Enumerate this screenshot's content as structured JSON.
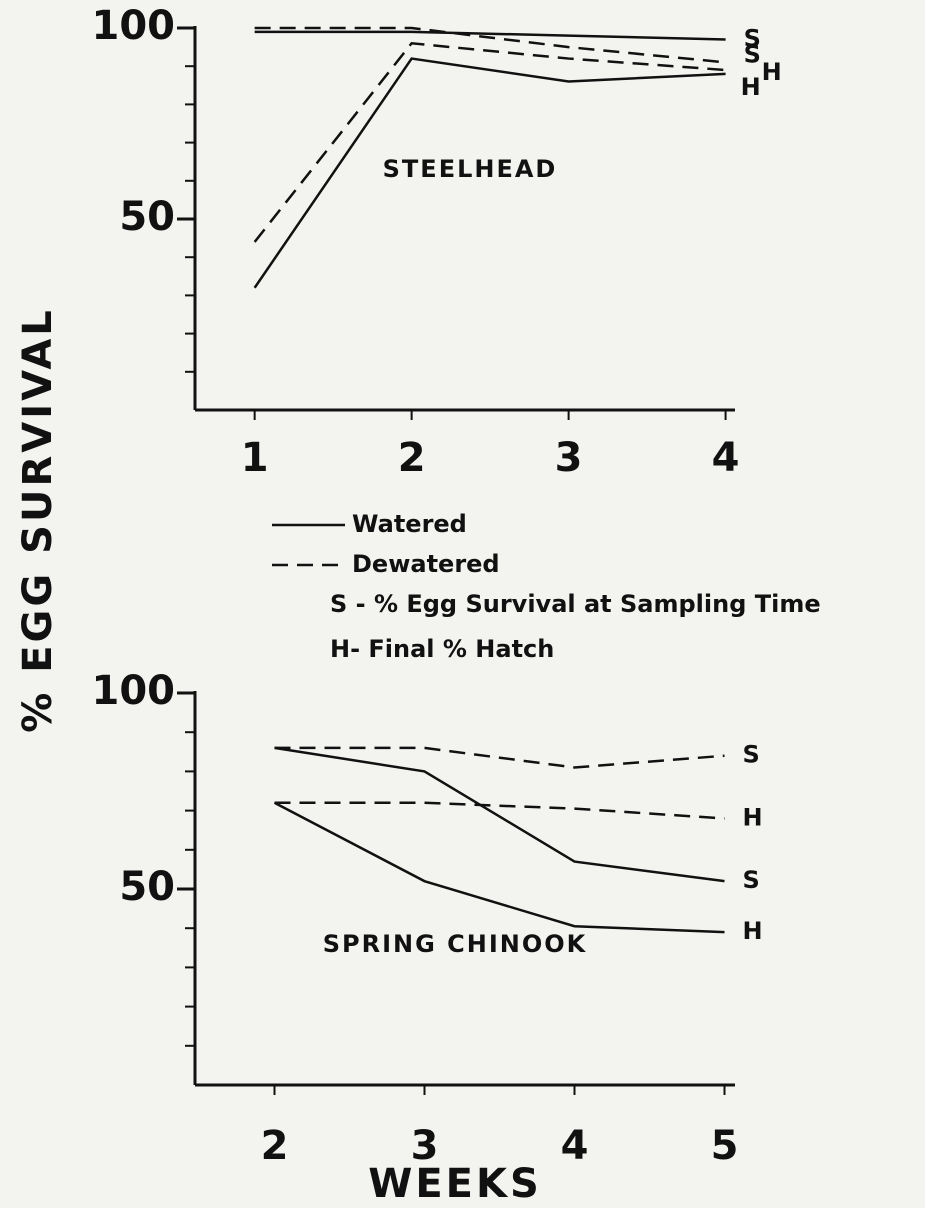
{
  "ylabel": "% EGG SURVIVAL",
  "xlabel": "WEEKS",
  "legend": [
    {
      "label": "Watered",
      "style": "solid"
    },
    {
      "label": "Dewatered",
      "style": "dashed"
    }
  ],
  "notes": [
    "S - % Egg Survival at Sampling Time",
    "H- Final % Hatch"
  ],
  "chart_data": [
    {
      "type": "line",
      "annotation": "STEELHEAD",
      "x": [
        1,
        2,
        3,
        4
      ],
      "xlim": [
        0.62,
        4.06
      ],
      "xticks": [
        1,
        2,
        3,
        4
      ],
      "ylim": [
        0,
        100
      ],
      "yticks": [
        50,
        100
      ],
      "yminorticks": [
        10,
        20,
        30,
        40,
        60,
        70,
        80,
        90
      ],
      "color": "#111111",
      "series": [
        {
          "name": "S",
          "style": "solid",
          "values": [
            99,
            99,
            98,
            97
          ]
        },
        {
          "name": "S",
          "style": "dashed",
          "values": [
            100,
            100,
            95,
            91
          ]
        },
        {
          "name": "H",
          "style": "dashed",
          "values": [
            44,
            96,
            92,
            89
          ]
        },
        {
          "name": "H",
          "style": "solid",
          "values": [
            32,
            92,
            86,
            88
          ]
        }
      ]
    },
    {
      "type": "line",
      "annotation": "SPRING CHINOOK",
      "x": [
        2,
        3,
        4,
        5
      ],
      "xlim": [
        1.47,
        5.07
      ],
      "xticks": [
        2,
        3,
        4,
        5
      ],
      "ylim": [
        0,
        100
      ],
      "yticks": [
        50,
        100
      ],
      "yminorticks": [
        10,
        20,
        30,
        40,
        60,
        70,
        80,
        90
      ],
      "color": "#111111",
      "series": [
        {
          "name": "S",
          "style": "dashed",
          "values": [
            86,
            86,
            81,
            84
          ]
        },
        {
          "name": "H",
          "style": "dashed",
          "values": [
            72,
            72,
            70.5,
            68
          ]
        },
        {
          "name": "S",
          "style": "solid",
          "values": [
            86,
            80,
            57,
            52
          ]
        },
        {
          "name": "H",
          "style": "solid",
          "values": [
            72,
            52,
            40.5,
            39
          ]
        }
      ]
    }
  ]
}
